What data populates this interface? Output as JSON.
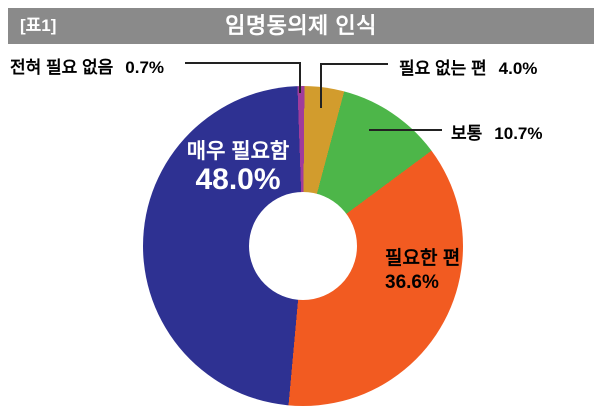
{
  "header": {
    "tag": "[표1]",
    "title": "임명동의제 인식",
    "bar_color": "#8A8A8A",
    "text_color": "#FFFFFF"
  },
  "chart_data": {
    "type": "pie",
    "subtype": "donut",
    "title": "임명동의제 인식",
    "units": "%",
    "total": 100.0,
    "direction": "clockwise",
    "start_angle_deg": -2,
    "hole_ratio": 0.34,
    "legend_position": "none",
    "segments": [
      {
        "label": "전혀 필요 없음",
        "value": 0.7,
        "display": "0.7%",
        "color": "#A03C9C",
        "label_style": "callout-left"
      },
      {
        "label": "필요 없는 편",
        "value": 4.0,
        "display": "4.0%",
        "color": "#D29C2D",
        "label_style": "callout-right"
      },
      {
        "label": "보통",
        "value": 10.7,
        "display": "10.7%",
        "color": "#4DB649",
        "label_style": "callout-right"
      },
      {
        "label": "필요한 편",
        "value": 36.6,
        "display": "36.6%",
        "color": "#F25B21",
        "label_style": "inside-black"
      },
      {
        "label": "매우 필요함",
        "value": 48.0,
        "display": "48.0%",
        "color": "#2E3192",
        "label_style": "inside-white"
      }
    ]
  }
}
